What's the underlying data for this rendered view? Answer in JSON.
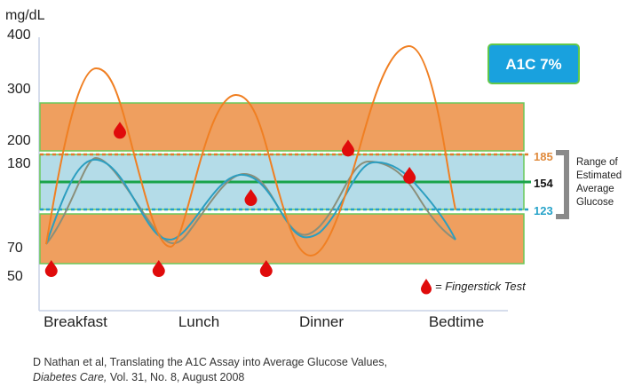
{
  "colors": {
    "orange_band": "#ef9f5f",
    "orange_band_border": "#6ac95a",
    "blue_band": "#b4dce8",
    "avg_line": "#1aa34a",
    "upper_dash": "#e07b2a",
    "lower_dash": "#23a0c8",
    "orange_curve": "#f07f22",
    "blue_curve": "#2c9ec0",
    "gray_curve": "#8a8f7a",
    "drop": "#e00b0b",
    "badge_fill": "#19a1de",
    "badge_border": "#62c84a",
    "bracket": "#8a8a8a",
    "axis": "#c9d2e6"
  },
  "badge": {
    "label": "A1C 7%"
  },
  "range_labels": {
    "upper": "185",
    "average": "154",
    "lower": "123",
    "upper_color": "#e08a3c",
    "average_color": "#111111",
    "lower_color": "#27a3c9"
  },
  "bracket_caption": [
    "Range of",
    "Estimated",
    "Average",
    "Glucose"
  ],
  "legend": {
    "icon": "drop-icon",
    "text": "= Fingerstick Test"
  },
  "citation": {
    "line1": "D Nathan et al, Translating  the A1C Assay into Average Glucose Values,",
    "journal": "Diabetes Care,",
    "rest": " Vol. 31, No. 8, August 2008"
  },
  "chart_data": {
    "type": "line",
    "ylabel": "mg/dL",
    "y_ticks": [
      400,
      300,
      200,
      180,
      70,
      50
    ],
    "x_ticks": [
      "Breakfast",
      "Lunch",
      "Dinner",
      "Bedtime"
    ],
    "bands": {
      "elevated_range": [
        200,
        270
      ],
      "estimated_average_range": [
        123,
        185
      ],
      "low_range": [
        70,
        120
      ]
    },
    "estimated_average": 154,
    "series": [
      {
        "color": "orange",
        "x": [
          0,
          0.35,
          0.7,
          1.0,
          1.4,
          1.9,
          2.3,
          2.7,
          2.95,
          3.35,
          3.7,
          4.0
        ],
        "y": [
          70,
          335,
          240,
          95,
          270,
          140,
          55,
          180,
          270,
          375,
          190,
          130
        ]
      },
      {
        "color": "blue",
        "x": [
          0,
          0.45,
          0.95,
          1.4,
          1.9,
          2.35,
          2.8,
          3.25,
          3.6,
          4.0
        ],
        "y": [
          70,
          180,
          95,
          160,
          120,
          100,
          150,
          170,
          130,
          100
        ]
      },
      {
        "color": "gray",
        "x": [
          0,
          0.5,
          1.0,
          1.5,
          2.0,
          2.5,
          3.0,
          3.5,
          4.0
        ],
        "y": [
          70,
          165,
          80,
          150,
          95,
          80,
          160,
          150,
          90
        ]
      }
    ],
    "fingerstick_tests": [
      {
        "x": 0.05,
        "y": 50
      },
      {
        "x": 0.72,
        "y": 215
      },
      {
        "x": 1.1,
        "y": 50
      },
      {
        "x": 2.0,
        "y": 135
      },
      {
        "x": 2.15,
        "y": 50
      },
      {
        "x": 2.95,
        "y": 190
      },
      {
        "x": 3.55,
        "y": 160
      }
    ]
  }
}
